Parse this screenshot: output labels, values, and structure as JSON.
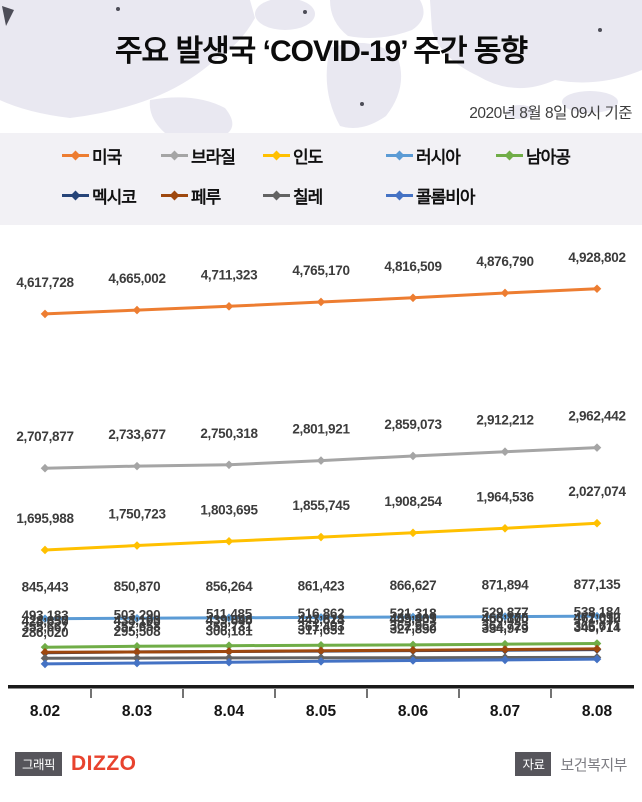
{
  "header": {
    "title": "주요 발생국 ‘COVID-19’ 주간 동향",
    "date_note": "2020년 8월 8일 09시 기준"
  },
  "chart_data": {
    "type": "line",
    "x": [
      "8.02",
      "8.03",
      "8.04",
      "8.05",
      "8.06",
      "8.07",
      "8.08"
    ],
    "series": [
      {
        "key": "usa",
        "name": "미국",
        "color": "#ED7D31",
        "values": [
          4617728,
          4665002,
          4711323,
          4765170,
          4816509,
          4876790,
          4928802
        ]
      },
      {
        "key": "brazil",
        "name": "브라질",
        "color": "#A5A5A5",
        "values": [
          2707877,
          2733677,
          2750318,
          2801921,
          2859073,
          2912212,
          2962442
        ]
      },
      {
        "key": "india",
        "name": "인도",
        "color": "#FFC000",
        "values": [
          1695988,
          1750723,
          1803695,
          1855745,
          1908254,
          1964536,
          2027074
        ]
      },
      {
        "key": "russia",
        "name": "러시아",
        "color": "#5B9BD5",
        "values": [
          845443,
          850870,
          856264,
          861423,
          866627,
          871894,
          877135
        ]
      },
      {
        "key": "south-africa",
        "name": "남아공",
        "color": "#70AD47",
        "values": [
          493183,
          503290,
          511485,
          516862,
          521318,
          529877,
          538184
        ]
      },
      {
        "key": "mexico",
        "name": "멕시코",
        "color": "#264478",
        "values": [
          424637,
          434193,
          439046,
          443813,
          449961,
          456100,
          462690
        ]
      },
      {
        "key": "peru",
        "name": "페루",
        "color": "#9E480E",
        "values": [
          428850,
          433100,
          439890,
          447624,
          455409,
          463875,
          471012
        ]
      },
      {
        "key": "chile",
        "name": "칠레",
        "color": "#636363",
        "values": [
          355667,
          357658,
          359731,
          361493,
          362962,
          364723,
          366671
        ]
      },
      {
        "key": "colombia",
        "name": "콜롬비아",
        "color": "#4472C4",
        "values": [
          286020,
          295508,
          306181,
          317651,
          327850,
          334979,
          345714
        ]
      }
    ],
    "ylim": [
      0,
      5500000
    ],
    "grid": false,
    "value_labels": true,
    "legend_position": "top",
    "title": "주요 발생국 ‘COVID-19’ 주간 동향",
    "xlabel": "",
    "ylabel": ""
  },
  "footer": {
    "credit_label": "그래픽",
    "credit_brand": "DIZZO",
    "source_label": "자료",
    "source_value": "보건복지부"
  }
}
